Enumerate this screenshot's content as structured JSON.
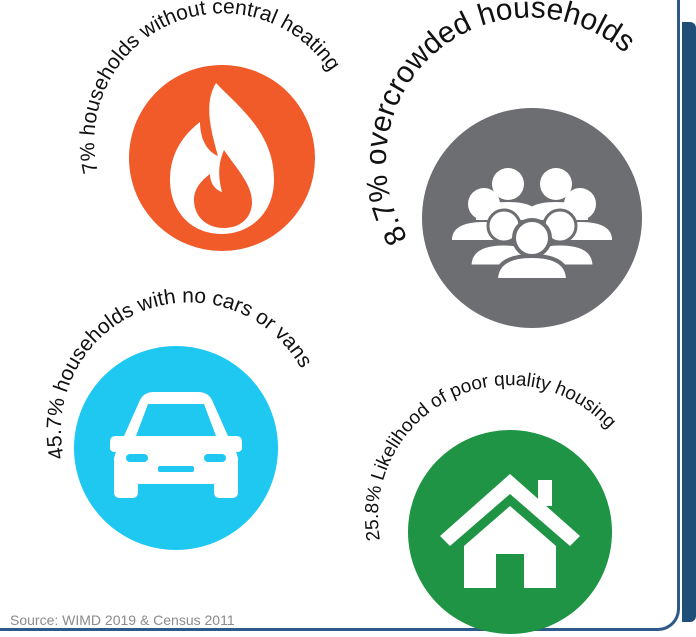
{
  "panels": [
    {
      "id": "heating",
      "label": "7% households without central heating",
      "color": "#f15a29",
      "icon": "flame-icon"
    },
    {
      "id": "overcrowded",
      "label": "8.7% overcrowded households",
      "color": "#6d6e71",
      "icon": "people-group-icon"
    },
    {
      "id": "cars",
      "label": "45.7% households with no cars or vans",
      "color": "#1ec8f0",
      "icon": "car-icon"
    },
    {
      "id": "housing",
      "label": "25.8% Likelihood of poor quality housing",
      "color": "#1e9444",
      "icon": "house-icon"
    }
  ],
  "source": "Source: WIMD 2019 & Census 2011"
}
